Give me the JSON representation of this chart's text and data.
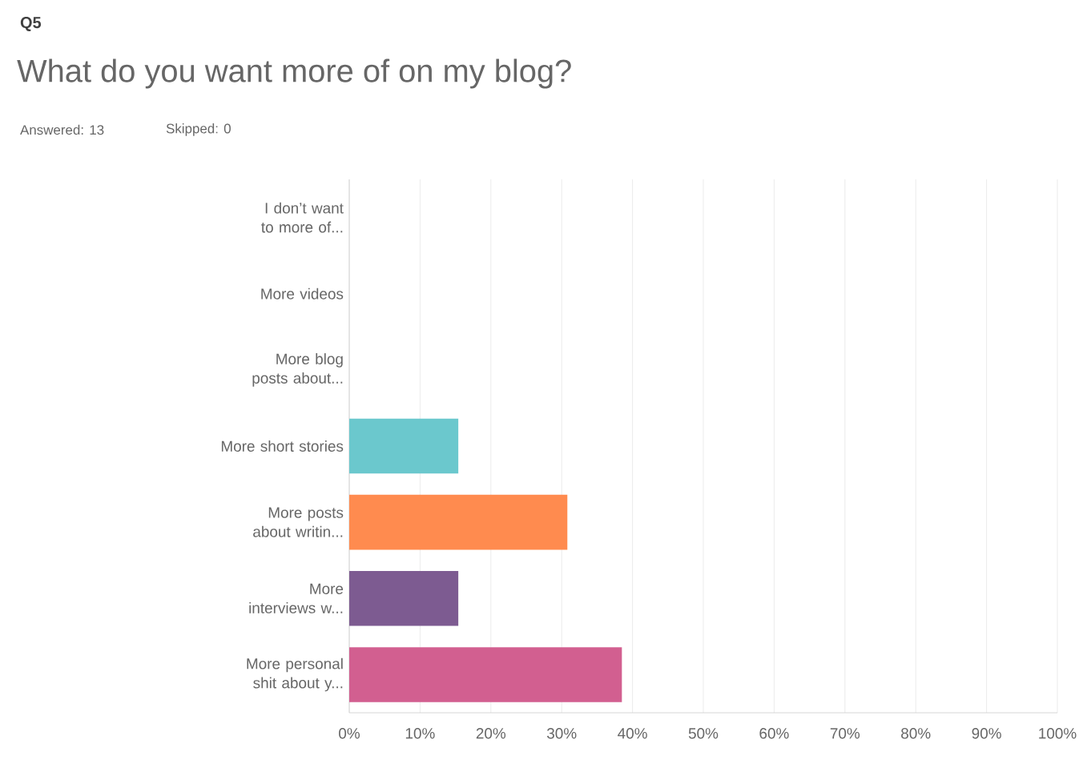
{
  "chart_data": {
    "type": "bar",
    "orientation": "horizontal",
    "title": "What do you want more of on my blog?",
    "annotations": [
      "Q5",
      "Answered: 13",
      "Skipped: 0"
    ],
    "categories": [
      "I don’t want to more of...",
      "More videos",
      "More blog posts about...",
      "More short stories",
      "More posts about writin...",
      "More interviews w...",
      "More personal shit about y..."
    ],
    "values": [
      0,
      0,
      0,
      15.4,
      30.8,
      15.4,
      38.5
    ],
    "colors": [
      "#6bc8cd",
      "#6bc8cd",
      "#6bc8cd",
      "#6bc8cd",
      "#ff8b4f",
      "#7d5b91",
      "#d25f90"
    ],
    "xlim": [
      0,
      100
    ],
    "xticks": [
      {
        "value": 0,
        "label": "0%"
      },
      {
        "value": 10,
        "label": "10%"
      },
      {
        "value": 20,
        "label": "20%"
      },
      {
        "value": 30,
        "label": "30%"
      },
      {
        "value": 40,
        "label": "40%"
      },
      {
        "value": 50,
        "label": "50%"
      },
      {
        "value": 60,
        "label": "60%"
      },
      {
        "value": 70,
        "label": "70%"
      },
      {
        "value": 80,
        "label": "80%"
      },
      {
        "value": 90,
        "label": "90%"
      },
      {
        "value": 100,
        "label": "100%"
      }
    ],
    "grid": "x"
  }
}
